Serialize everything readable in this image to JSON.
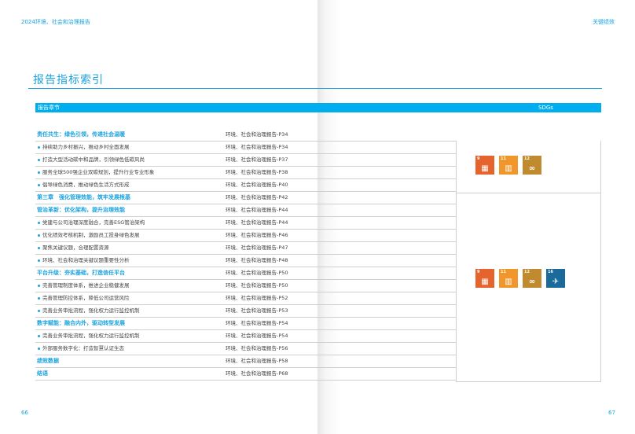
{
  "header": {
    "left": "2024环境、社会和治理报告",
    "right": "关键绩效"
  },
  "title": "报告指标索引",
  "table": {
    "col_chapter": "报告章节",
    "col_sdgs": "SDGs",
    "rows": [
      {
        "text": "责任共生：绿色引领，传递社会温暖",
        "ref": "环境、社会和治理报告-P34",
        "heading": true
      },
      {
        "text": "持续助力乡村振兴，推动乡村全面发展",
        "ref": "环境、社会和治理报告-P34"
      },
      {
        "text": "打造大型活动碳中和品牌，引领绿色低碳风尚",
        "ref": "环境、社会和治理报告-P37"
      },
      {
        "text": "服务全球500强企业双碳规划，提升行业专业形象",
        "ref": "环境、社会和治理报告-P38"
      },
      {
        "text": "倡导绿色消费，推动绿色生活方式形成",
        "ref": "环境、社会和治理报告-P40"
      },
      {
        "text": "第三章　强化管理效能，筑牢发展根基",
        "ref": "环境、社会和治理报告-P42",
        "heading": true
      },
      {
        "text": "管治革新：优化架构，提升治理效能",
        "ref": "环境、社会和治理报告-P44",
        "heading": true
      },
      {
        "text": "党建与公司治理深度融合，完善ESG管治架构",
        "ref": "环境、社会和治理报告-P44"
      },
      {
        "text": "优化绩效考核机制，激励员工投身绿色发展",
        "ref": "环境、社会和治理报告-P46"
      },
      {
        "text": "聚焦关键议题，合理配置资源",
        "ref": "环境、社会和治理报告-P47"
      },
      {
        "text": "环境、社会和治理关键议题重要性分析",
        "ref": "环境、社会和治理报告-P48"
      },
      {
        "text": "平台升级：夯实基础，打造信任平台",
        "ref": "环境、社会和治理报告-P50",
        "heading": true
      },
      {
        "text": "完善管理制度体系，推进企业稳健发展",
        "ref": "环境、社会和治理报告-P50"
      },
      {
        "text": "完善管理防控体系，降低公司运营风险",
        "ref": "环境、社会和治理报告-P52"
      },
      {
        "text": "完善业务审批流程，强化权力运行监控机制",
        "ref": "环境、社会和治理报告-P53"
      },
      {
        "text": "数字赋能：融合内外，驱动转型发展",
        "ref": "环境、社会和治理报告-P54",
        "heading": true
      },
      {
        "text": "完善业务审批流程，强化权力运行监控机制",
        "ref": "环境、社会和治理报告-P54"
      },
      {
        "text": "外部服务数字化：打造智慧认证生态",
        "ref": "环境、社会和治理报告-P56"
      },
      {
        "text": "绩效数据",
        "ref": "环境、社会和治理报告-P58",
        "heading": true
      },
      {
        "text": "结语",
        "ref": "环境、社会和治理报告-P68",
        "heading": true
      }
    ]
  },
  "sdg_groups": [
    [
      {
        "num": "9",
        "color": "#e5632d",
        "icon": "industry-icon"
      },
      {
        "num": "11",
        "color": "#f0962a",
        "icon": "city-icon"
      },
      {
        "num": "12",
        "color": "#bf8b2e",
        "icon": "infinity-icon"
      }
    ],
    [
      {
        "num": "9",
        "color": "#e5632d",
        "icon": "industry-icon"
      },
      {
        "num": "11",
        "color": "#f0962a",
        "icon": "city-icon"
      },
      {
        "num": "12",
        "color": "#bf8b2e",
        "icon": "infinity-icon"
      },
      {
        "num": "16",
        "color": "#1a6a9a",
        "icon": "dove-icon"
      }
    ]
  ],
  "page_numbers": {
    "left": "66",
    "right": "67"
  }
}
